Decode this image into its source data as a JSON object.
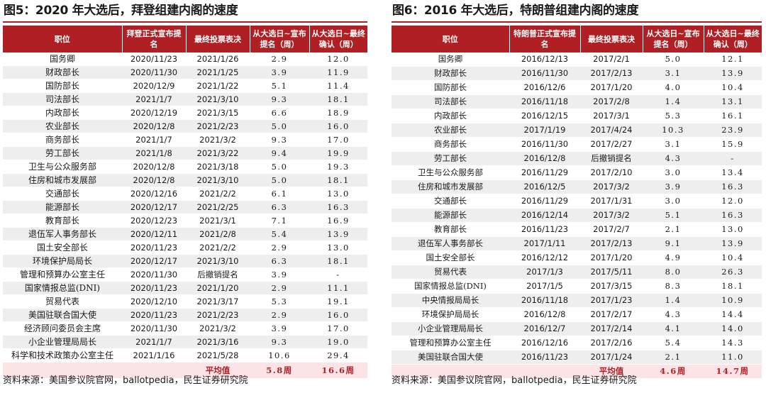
{
  "left": {
    "title": "图5：2020 年大选后，拜登组建内阁的速度",
    "headers": [
      "职位",
      "拜登正式宣布提名",
      "最终投票表决",
      "从大选日~宣布提名（周）",
      "从大选日~最终确认（周）"
    ],
    "rows": [
      [
        "国务卿",
        "2020/11/23",
        "2021/1/26",
        "2.9",
        "12.0"
      ],
      [
        "财政部长",
        "2020/11/30",
        "2021/1/25",
        "3.9",
        "11.9"
      ],
      [
        "国防部长",
        "2020/12/9",
        "2021/1/22",
        "5.1",
        "11.4"
      ],
      [
        "司法部长",
        "2021/1/7",
        "2021/3/10",
        "9.3",
        "18.1"
      ],
      [
        "内政部长",
        "2020/12/19",
        "2021/3/15",
        "6.6",
        "18.9"
      ],
      [
        "农业部长",
        "2020/12/8",
        "2021/2/23",
        "5.0",
        "16.0"
      ],
      [
        "商务部长",
        "2021/1/7",
        "2021/3/2",
        "9.3",
        "17.0"
      ],
      [
        "劳工部长",
        "2021/1/8",
        "2021/3/22",
        "9.4",
        "19.9"
      ],
      [
        "卫生与公众服务部",
        "2020/12/8",
        "2021/3/18",
        "5.0",
        "19.3"
      ],
      [
        "住房和城市发展部",
        "2020/12/8",
        "2021/3/10",
        "5.0",
        "18.1"
      ],
      [
        "交通部长",
        "2020/12/16",
        "2021/2/2",
        "6.1",
        "13.0"
      ],
      [
        "能源部长",
        "2020/12/17",
        "2021/2/25",
        "6.3",
        "16.3"
      ],
      [
        "教育部长",
        "2020/12/23",
        "2021/3/1",
        "7.1",
        "16.9"
      ],
      [
        "退伍军人事务部长",
        "2020/12/11",
        "2021/2/8",
        "5.4",
        "13.9"
      ],
      [
        "国土安全部长",
        "2020/11/23",
        "2021/2/2",
        "2.9",
        "13.0"
      ],
      [
        "环境保护局局长",
        "2020/12/17",
        "2021/3/10",
        "6.3",
        "18.1"
      ],
      [
        "管理和预算办公室主任",
        "2020/11/30",
        "后撤销提名",
        "3.9",
        "-"
      ],
      [
        "国家情报总监(DNI)",
        "2020/11/23",
        "2021/1/20",
        "2.9",
        "11.1"
      ],
      [
        "贸易代表",
        "2020/12/10",
        "2021/3/17",
        "5.3",
        "19.1"
      ],
      [
        "美国驻联合国大使",
        "2020/11/23",
        "2021/2/23",
        "2.9",
        "16.0"
      ],
      [
        "经济顾问委员会主席",
        "2020/11/30",
        "2021/3/2",
        "3.9",
        "17.0"
      ],
      [
        "小企业管理局局长",
        "2021/1/7",
        "2021/3/16",
        "9.3",
        "19.0"
      ],
      [
        "科学和技术政策办公室主任",
        "2021/1/16",
        "2021/5/28",
        "10.6",
        "29.4"
      ]
    ],
    "avg": [
      "平均值",
      "5.8周",
      "16.6周"
    ],
    "source": "资料来源：美国参议院官网，ballotpedia，民生证券研究院"
  },
  "right": {
    "title": "图6：2016 年大选后，特朗普组建内阁的速度",
    "headers": [
      "职位",
      "特朗普正式宣布提名",
      "最终投票表决",
      "从大选日~宣布提名（周）",
      "从大选日~最终确认（周）"
    ],
    "rows": [
      [
        "国务卿",
        "2016/12/13",
        "2017/2/1",
        "5.0",
        "12.1"
      ],
      [
        "财政部长",
        "2016/11/30",
        "2017/2/13",
        "3.1",
        "13.9"
      ],
      [
        "国防部长",
        "2016/12/6",
        "2017/1/20",
        "4.0",
        "10.4"
      ],
      [
        "司法部长",
        "2016/11/18",
        "2017/2/8",
        "1.4",
        "13.1"
      ],
      [
        "内政部长",
        "2016/12/15",
        "2017/3/1",
        "5.3",
        "16.1"
      ],
      [
        "农业部长",
        "2017/1/19",
        "2017/4/24",
        "10.3",
        "23.9"
      ],
      [
        "商务部长",
        "2016/11/30",
        "2017/2/27",
        "3.1",
        "15.9"
      ],
      [
        "劳工部长",
        "2016/12/8",
        "后撤销提名",
        "4.3",
        "-"
      ],
      [
        "卫生与公众服务部",
        "2016/11/29",
        "2017/2/10",
        "3.0",
        "13.4"
      ],
      [
        "住房和城市发展部",
        "2016/12/5",
        "2017/3/2",
        "3.9",
        "16.3"
      ],
      [
        "交通部长",
        "2016/11/29",
        "2017/1/31",
        "3.0",
        "12.0"
      ],
      [
        "能源部长",
        "2016/12/14",
        "2017/3/2",
        "5.1",
        "16.3"
      ],
      [
        "教育部长",
        "2016/11/23",
        "2017/2/7",
        "2.1",
        "13.0"
      ],
      [
        "退伍军人事务部长",
        "2017/1/11",
        "2017/2/13",
        "9.1",
        "13.9"
      ],
      [
        "国土安全部长",
        "2016/12/12",
        "2017/1/20",
        "4.9",
        "10.4"
      ],
      [
        "贸易代表",
        "2017/1/3",
        "2017/5/11",
        "8.0",
        "26.3"
      ],
      [
        "国家情报总监(DNI)",
        "2017/1/5",
        "2017/3/15",
        "8.3",
        "18.1"
      ],
      [
        "中央情报局局长",
        "2016/11/18",
        "2017/1/23",
        "1.4",
        "10.9"
      ],
      [
        "环境保护局局长",
        "2016/12/8",
        "2017/2/17",
        "4.3",
        "14.4"
      ],
      [
        "小企业管理局局长",
        "2016/12/7",
        "2017/2/14",
        "4.1",
        "14.0"
      ],
      [
        "管理和预算办公室主任",
        "2016/12/16",
        "2017/2/16",
        "5.4",
        "14.3"
      ],
      [
        "美国驻联合国大使",
        "2016/11/23",
        "2017/1/24",
        "2.1",
        "11.0"
      ]
    ],
    "avg": [
      "平均值",
      "4.6周",
      "14.7周"
    ],
    "source": "资料来源：美国参议院官网，ballotpedia，民生证券研究院"
  }
}
